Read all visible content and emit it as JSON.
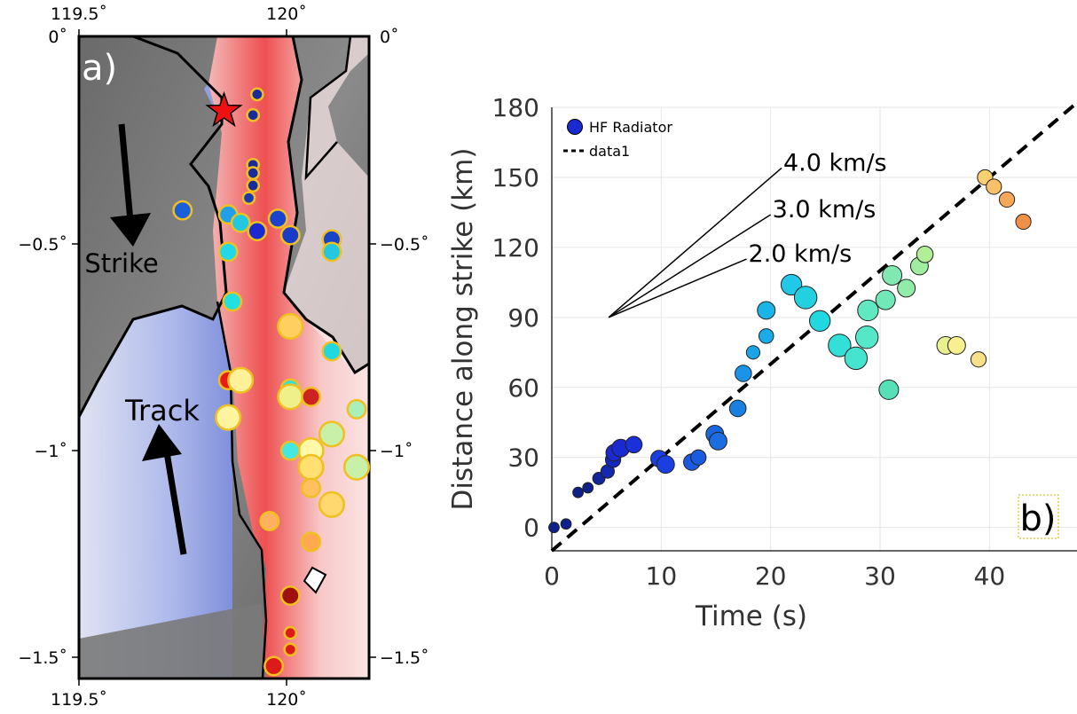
{
  "panel_a": {
    "label": "a)",
    "x_ticks": [
      "119.5˚",
      "120˚"
    ],
    "y_ticks": [
      "0˚",
      "−0.5˚",
      "−1˚",
      "−1.5˚"
    ],
    "lon_range": [
      119.5,
      120.2
    ],
    "lat_range": [
      -1.55,
      0
    ],
    "strike_label": "Strike",
    "track_label": "Track",
    "radiator_dots": [
      {
        "lon": 119.93,
        "lat": -0.14,
        "color": "#1a2a9a",
        "size": 1
      },
      {
        "lon": 119.92,
        "lat": -0.19,
        "color": "#1a2a9a",
        "size": 1
      },
      {
        "lon": 119.92,
        "lat": -0.31,
        "color": "#1a2a9a",
        "size": 1
      },
      {
        "lon": 119.92,
        "lat": -0.33,
        "color": "#1a2a9a",
        "size": 1
      },
      {
        "lon": 119.92,
        "lat": -0.36,
        "color": "#1a2a9a",
        "size": 1
      },
      {
        "lon": 119.91,
        "lat": -0.39,
        "color": "#1a3ab0",
        "size": 1
      },
      {
        "lon": 119.75,
        "lat": -0.42,
        "color": "#1a5fd8",
        "size": 2
      },
      {
        "lon": 119.86,
        "lat": -0.43,
        "color": "#1fa0e8",
        "size": 2
      },
      {
        "lon": 119.89,
        "lat": -0.45,
        "color": "#22c8e0",
        "size": 2
      },
      {
        "lon": 119.93,
        "lat": -0.47,
        "color": "#1a2ad0",
        "size": 2
      },
      {
        "lon": 119.98,
        "lat": -0.44,
        "color": "#1a44d0",
        "size": 2
      },
      {
        "lon": 120.01,
        "lat": -0.48,
        "color": "#1a3ac8",
        "size": 2
      },
      {
        "lon": 119.86,
        "lat": -0.52,
        "color": "#22d8e8",
        "size": 2
      },
      {
        "lon": 120.11,
        "lat": -0.49,
        "color": "#1a44c8",
        "size": 2
      },
      {
        "lon": 120.11,
        "lat": -0.52,
        "color": "#22c8e0",
        "size": 2
      },
      {
        "lon": 119.87,
        "lat": -0.64,
        "color": "#22e0e0",
        "size": 2
      },
      {
        "lon": 120.01,
        "lat": -0.7,
        "color": "#ffd060",
        "size": 3
      },
      {
        "lon": 120.11,
        "lat": -0.76,
        "color": "#22d8e0",
        "size": 2
      },
      {
        "lon": 119.86,
        "lat": -0.83,
        "color": "#e81a1a",
        "size": 2
      },
      {
        "lon": 119.89,
        "lat": -0.83,
        "color": "#fff09a",
        "size": 3
      },
      {
        "lon": 120.01,
        "lat": -0.85,
        "color": "#33e0d8",
        "size": 2
      },
      {
        "lon": 120.01,
        "lat": -0.87,
        "color": "#f0f08a",
        "size": 3
      },
      {
        "lon": 120.06,
        "lat": -0.87,
        "color": "#cc2222",
        "size": 2
      },
      {
        "lon": 119.86,
        "lat": -0.92,
        "color": "#fff5a0",
        "size": 3
      },
      {
        "lon": 120.17,
        "lat": -0.9,
        "color": "#a8f0b8",
        "size": 2
      },
      {
        "lon": 120.11,
        "lat": -0.96,
        "color": "#c8f0a8",
        "size": 3
      },
      {
        "lon": 120.06,
        "lat": -1.0,
        "color": "#fff8a8",
        "size": 3
      },
      {
        "lon": 120.01,
        "lat": -1.0,
        "color": "#44e8e0",
        "size": 2
      },
      {
        "lon": 120.06,
        "lat": -1.04,
        "color": "#ffe070",
        "size": 3
      },
      {
        "lon": 120.06,
        "lat": -1.09,
        "color": "#ffc060",
        "size": 2
      },
      {
        "lon": 120.17,
        "lat": -1.04,
        "color": "#c8f0a8",
        "size": 3
      },
      {
        "lon": 120.11,
        "lat": -1.13,
        "color": "#ffd870",
        "size": 3
      },
      {
        "lon": 119.96,
        "lat": -1.17,
        "color": "#ffb060",
        "size": 2
      },
      {
        "lon": 120.06,
        "lat": -1.22,
        "color": "#ffa850",
        "size": 2
      },
      {
        "lon": 120.01,
        "lat": -1.35,
        "color": "#a01010",
        "size": 2
      },
      {
        "lon": 120.01,
        "lat": -1.44,
        "color": "#dd1a1a",
        "size": 1
      },
      {
        "lon": 120.01,
        "lat": -1.48,
        "color": "#dd1a1a",
        "size": 1
      },
      {
        "lon": 119.97,
        "lat": -1.52,
        "color": "#dd1a1a",
        "size": 2
      }
    ],
    "epicenter": {
      "lon": 119.85,
      "lat": -0.18
    }
  },
  "chart_data": {
    "type": "scatter",
    "xlabel": "Time (s)",
    "ylabel": "Distance along strike (km)",
    "xlim": [
      0,
      48
    ],
    "ylim": [
      -10,
      180
    ],
    "x_ticks": [
      0,
      10,
      20,
      30,
      40
    ],
    "y_ticks": [
      0,
      30,
      60,
      90,
      120,
      150,
      180
    ],
    "grid": true,
    "legend_position": "top-left",
    "panel_label": "b)",
    "series": [
      {
        "name": "HF Radiator",
        "color": "#1a2ad0",
        "points": [
          {
            "x": 0.2,
            "y": 0,
            "color": "#10208a",
            "size": 1
          },
          {
            "x": 1.3,
            "y": 1.5,
            "color": "#10208a",
            "size": 1
          },
          {
            "x": 2.4,
            "y": 15,
            "color": "#10208a",
            "size": 1
          },
          {
            "x": 3.3,
            "y": 17,
            "color": "#10208a",
            "size": 1
          },
          {
            "x": 4.3,
            "y": 21,
            "color": "#12259a",
            "size": 1.3
          },
          {
            "x": 5.1,
            "y": 24,
            "color": "#1428b0",
            "size": 1.5
          },
          {
            "x": 5.6,
            "y": 29,
            "color": "#1428c0",
            "size": 1.8
          },
          {
            "x": 5.7,
            "y": 32,
            "color": "#1a2ad0",
            "size": 2
          },
          {
            "x": 6.3,
            "y": 34,
            "color": "#1a2ad0",
            "size": 2.2
          },
          {
            "x": 7.5,
            "y": 35.5,
            "color": "#1a30d8",
            "size": 2
          },
          {
            "x": 9.8,
            "y": 29.5,
            "color": "#1a3ee0",
            "size": 2
          },
          {
            "x": 10.4,
            "y": 27,
            "color": "#1a3ee0",
            "size": 2.2
          },
          {
            "x": 12.8,
            "y": 28,
            "color": "#1a5ae0",
            "size": 2
          },
          {
            "x": 13.4,
            "y": 30,
            "color": "#1a5ae0",
            "size": 1.8
          },
          {
            "x": 14.9,
            "y": 40,
            "color": "#1a66e0",
            "size": 2.2
          },
          {
            "x": 15.2,
            "y": 37,
            "color": "#1a6ee0",
            "size": 2.2
          },
          {
            "x": 17.0,
            "y": 51,
            "color": "#1a80e0",
            "size": 2
          },
          {
            "x": 17.5,
            "y": 66,
            "color": "#1a94e8",
            "size": 2
          },
          {
            "x": 18.4,
            "y": 75,
            "color": "#1aa4e8",
            "size": 1.5
          },
          {
            "x": 19.6,
            "y": 82,
            "color": "#1aace8",
            "size": 1.7
          },
          {
            "x": 19.6,
            "y": 93,
            "color": "#1ab4e8",
            "size": 2.2
          },
          {
            "x": 21.9,
            "y": 104,
            "color": "#22c8e8",
            "size": 2.7
          },
          {
            "x": 23.2,
            "y": 98.5,
            "color": "#22d0e0",
            "size": 3
          },
          {
            "x": 24.5,
            "y": 88.5,
            "color": "#22d8e0",
            "size": 2.7
          },
          {
            "x": 26.3,
            "y": 78,
            "color": "#33e0d8",
            "size": 3
          },
          {
            "x": 27.8,
            "y": 72.5,
            "color": "#44e4d0",
            "size": 3
          },
          {
            "x": 28.8,
            "y": 81.5,
            "color": "#55e8c8",
            "size": 3
          },
          {
            "x": 28.9,
            "y": 93,
            "color": "#60e8c0",
            "size": 2.7
          },
          {
            "x": 30.5,
            "y": 97.5,
            "color": "#70e8b8",
            "size": 2.5
          },
          {
            "x": 30.8,
            "y": 59,
            "color": "#55e0b8",
            "size": 2.5
          },
          {
            "x": 31.1,
            "y": 108,
            "color": "#80e8b0",
            "size": 2.5
          },
          {
            "x": 32.4,
            "y": 102.5,
            "color": "#90eca8",
            "size": 2.2
          },
          {
            "x": 33.6,
            "y": 112,
            "color": "#a0eca0",
            "size": 2.2
          },
          {
            "x": 34.1,
            "y": 117,
            "color": "#b0ee98",
            "size": 2
          },
          {
            "x": 36.0,
            "y": 78,
            "color": "#e8f090",
            "size": 2.2
          },
          {
            "x": 37.0,
            "y": 78,
            "color": "#f8f090",
            "size": 2.2
          },
          {
            "x": 39.0,
            "y": 72,
            "color": "#f8e088",
            "size": 1.8
          },
          {
            "x": 39.6,
            "y": 150,
            "color": "#f8d070",
            "size": 1.8
          },
          {
            "x": 40.4,
            "y": 146,
            "color": "#f8c068",
            "size": 1.8
          },
          {
            "x": 41.6,
            "y": 140.5,
            "color": "#f8a858",
            "size": 1.8
          },
          {
            "x": 43.1,
            "y": 131,
            "color": "#f09048",
            "size": 1.8
          }
        ]
      },
      {
        "name": "data1",
        "type": "line",
        "dash": true,
        "color": "#000000",
        "x": [
          0,
          48
        ],
        "y": [
          -10,
          182
        ]
      }
    ],
    "velocity_fan": {
      "origin": {
        "x": 5.2,
        "y": 90
      },
      "lines": [
        {
          "label": "4.0 km/s",
          "end": {
            "x": 21.0,
            "y": 154
          }
        },
        {
          "label": "3.0 km/s",
          "end": {
            "x": 20.0,
            "y": 134
          }
        },
        {
          "label": "2.0 km/s",
          "end": {
            "x": 17.8,
            "y": 115
          }
        }
      ]
    }
  }
}
